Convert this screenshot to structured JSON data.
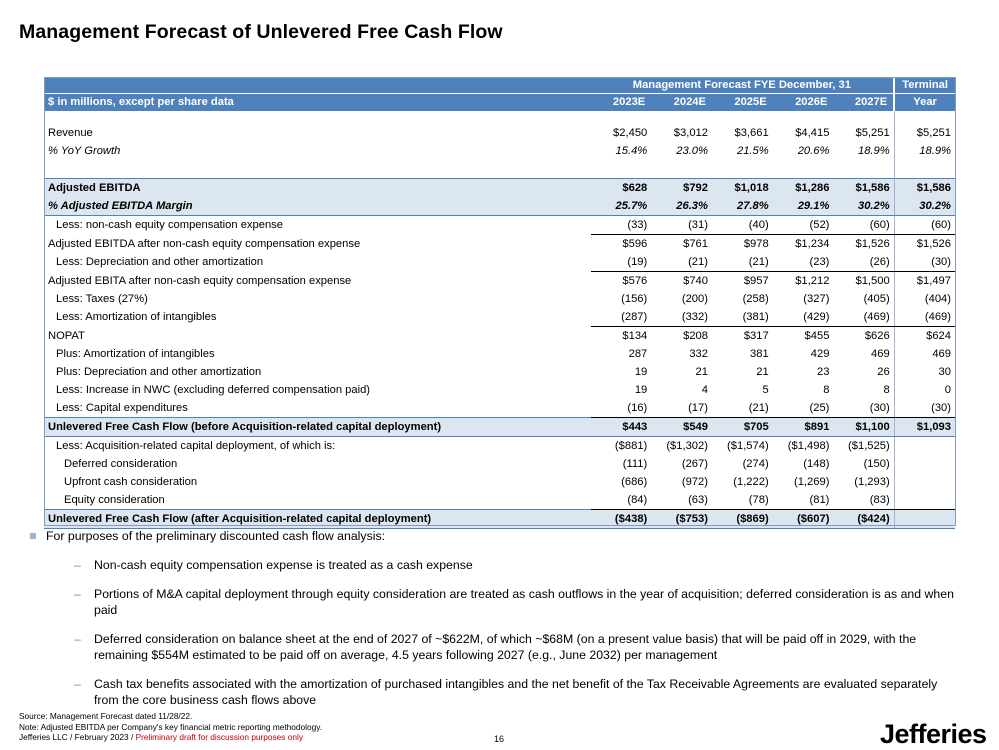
{
  "title": "Management Forecast of Unlevered Free Cash Flow",
  "table": {
    "group_header": "Management Forecast FYE December, 31",
    "terminal_header_1": "Terminal",
    "terminal_header_2": "Year",
    "units_label": "$ in millions, except per share data",
    "years": [
      "2023E",
      "2024E",
      "2025E",
      "2026E",
      "2027E"
    ],
    "rows": {
      "revenue": {
        "label": "Revenue",
        "values": [
          "$2,450",
          "$3,012",
          "$3,661",
          "$4,415",
          "$5,251",
          "$5,251"
        ]
      },
      "yoy": {
        "label": "% YoY Growth",
        "values": [
          "15.4%",
          "23.0%",
          "21.5%",
          "20.6%",
          "18.9%",
          "18.9%"
        ]
      },
      "adj_ebitda": {
        "label": "Adjusted EBITDA",
        "values": [
          "$628",
          "$792",
          "$1,018",
          "$1,286",
          "$1,586",
          "$1,586"
        ]
      },
      "adj_ebitda_margin": {
        "label": "% Adjusted EBITDA Margin",
        "values": [
          "25.7%",
          "26.3%",
          "27.8%",
          "29.1%",
          "30.2%",
          "30.2%"
        ]
      },
      "less_equity_comp": {
        "label": "Less: non-cash equity compensation expense",
        "values": [
          "(33)",
          "(31)",
          "(40)",
          "(52)",
          "(60)",
          "(60)"
        ]
      },
      "ebitda_after_comp": {
        "label": "Adjusted EBITDA after non-cash equity compensation expense",
        "values": [
          "$596",
          "$761",
          "$978",
          "$1,234",
          "$1,526",
          "$1,526"
        ]
      },
      "less_da": {
        "label": "Less: Depreciation and other amortization",
        "values": [
          "(19)",
          "(21)",
          "(21)",
          "(23)",
          "(26)",
          "(30)"
        ]
      },
      "ebita_after_comp": {
        "label": "Adjusted EBITA after non-cash equity compensation expense",
        "values": [
          "$576",
          "$740",
          "$957",
          "$1,212",
          "$1,500",
          "$1,497"
        ]
      },
      "less_taxes": {
        "label": "Less: Taxes (27%)",
        "values": [
          "(156)",
          "(200)",
          "(258)",
          "(327)",
          "(405)",
          "(404)"
        ]
      },
      "less_amort_intang": {
        "label": "Less: Amortization of intangibles",
        "values": [
          "(287)",
          "(332)",
          "(381)",
          "(429)",
          "(469)",
          "(469)"
        ]
      },
      "nopat": {
        "label": "NOPAT",
        "values": [
          "$134",
          "$208",
          "$317",
          "$455",
          "$626",
          "$624"
        ]
      },
      "plus_amort_intang": {
        "label": "Plus: Amortization of intangibles",
        "values": [
          "287",
          "332",
          "381",
          "429",
          "469",
          "469"
        ]
      },
      "plus_da": {
        "label": "Plus: Depreciation and other amortization",
        "values": [
          "19",
          "21",
          "21",
          "23",
          "26",
          "30"
        ]
      },
      "less_nwc": {
        "label": "Less: Increase in NWC (excluding deferred compensation paid)",
        "values": [
          "19",
          "4",
          "5",
          "8",
          "8",
          "0"
        ]
      },
      "less_capex": {
        "label": "Less: Capital expenditures",
        "values": [
          "(16)",
          "(17)",
          "(21)",
          "(25)",
          "(30)",
          "(30)"
        ]
      },
      "ufcf_before": {
        "label": "Unlevered Free Cash Flow (before Acquisition-related capital deployment)",
        "values": [
          "$443",
          "$549",
          "$705",
          "$891",
          "$1,100",
          "$1,093"
        ]
      },
      "less_acq": {
        "label": "Less: Acquisition-related capital deployment, of which is:",
        "values": [
          "($881)",
          "($1,302)",
          "($1,574)",
          "($1,498)",
          "($1,525)",
          ""
        ]
      },
      "deferred": {
        "label": "Deferred consideration",
        "values": [
          "(111)",
          "(267)",
          "(274)",
          "(148)",
          "(150)",
          ""
        ]
      },
      "upfront": {
        "label": "Upfront cash consideration",
        "values": [
          "(686)",
          "(972)",
          "(1,222)",
          "(1,269)",
          "(1,293)",
          ""
        ]
      },
      "equity": {
        "label": "Equity consideration",
        "values": [
          "(84)",
          "(63)",
          "(78)",
          "(81)",
          "(83)",
          ""
        ]
      },
      "ufcf_after": {
        "label": "Unlevered Free Cash Flow (after Acquisition-related capital deployment)",
        "values": [
          "($438)",
          "($753)",
          "($869)",
          "($607)",
          "($424)",
          ""
        ]
      }
    }
  },
  "bullets": {
    "main": "For purposes of the preliminary discounted cash flow analysis:",
    "sub": [
      "Non-cash equity compensation expense is treated as a cash expense",
      "Portions of M&A capital deployment through equity consideration are treated as cash outflows in the year of acquisition; deferred consideration is as and when paid",
      "Deferred consideration on balance sheet at the end of 2027 of ~$622M, of which ~$68M (on a present value basis) that will be paid off in 2029, with the remaining $554M estimated to be paid off on average, 4.5 years following 2027 (e.g., June 2032) per management",
      "Cash tax benefits associated with the amortization of purchased intangibles and the net benefit of the Tax Receivable Agreements are evaluated separately from the core business cash flows above"
    ],
    "dash": "–"
  },
  "footer": {
    "source": "Source: Management Forecast dated 11/28/22.",
    "note": "Note: Adjusted EBITDA per Company's key financial metric reporting methodology.",
    "company": "Jefferies LLC",
    "date": "February 2023",
    "separator": "/",
    "draft": "Preliminary draft for discussion purposes only",
    "page": "16",
    "logo": "Jefferies"
  },
  "colors": {
    "header_bg": "#4f81bd",
    "shade_bg": "#dce6f1",
    "draft_red": "#c00000"
  }
}
